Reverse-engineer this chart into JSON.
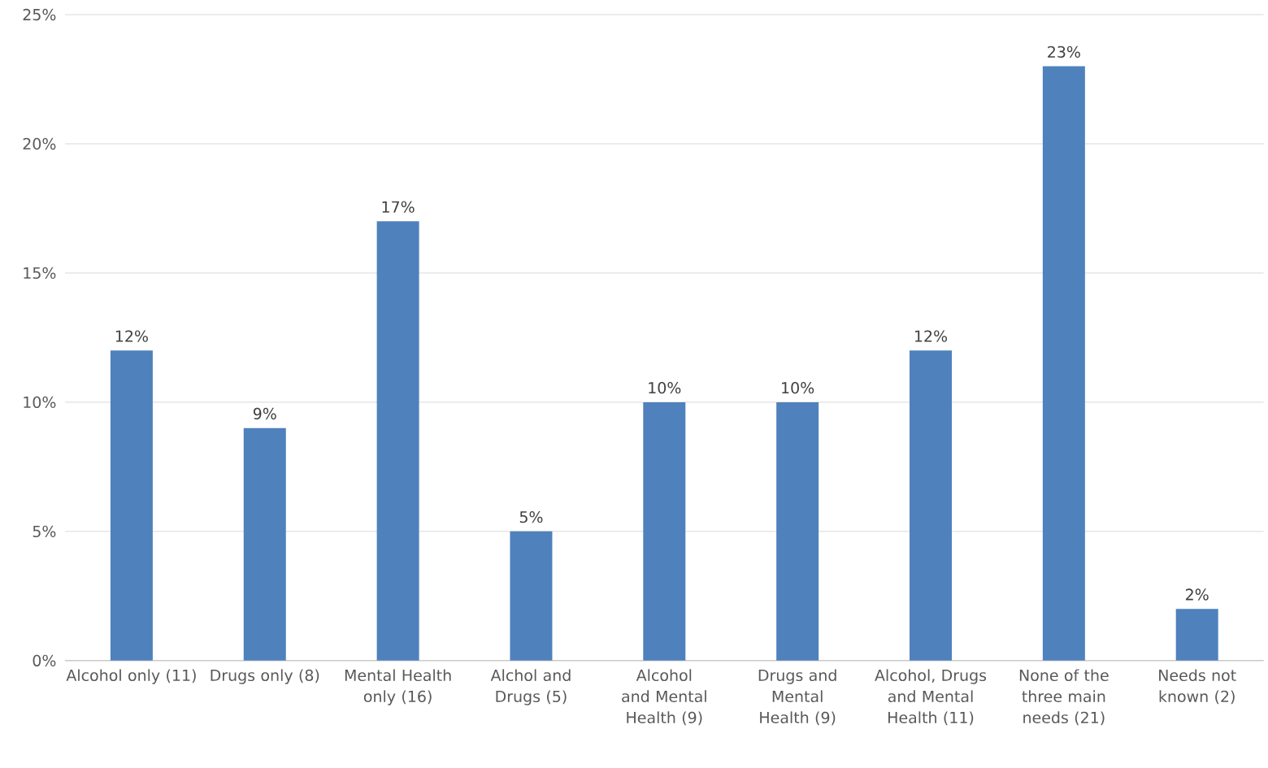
{
  "chart_data": {
    "type": "bar",
    "categories": [
      "Alcohol only (11)",
      "Drugs only (8)",
      "Mental Health only (16)",
      "Alchol and Drugs (5)",
      "Alcohol and Mental Health (9)",
      "Drugs and Mental Health (9)",
      "Alcohol, Drugs and Mental Health (11)",
      "None of the three main needs (21)",
      "Needs not known (2)"
    ],
    "values": [
      12,
      9,
      17,
      5,
      10,
      10,
      12,
      23,
      2
    ],
    "value_labels": [
      "12%",
      "9%",
      "17%",
      "5%",
      "10%",
      "10%",
      "12%",
      "23%",
      "2%"
    ],
    "color": "#4f81bd",
    "ylim": [
      0,
      25
    ],
    "yticks": [
      {
        "value": 0,
        "label": "0%"
      },
      {
        "value": 5,
        "label": "5%"
      },
      {
        "value": 10,
        "label": "10%"
      },
      {
        "value": 15,
        "label": "15%"
      },
      {
        "value": 20,
        "label": "20%"
      },
      {
        "value": 25,
        "label": "25%"
      }
    ],
    "grid": "y"
  }
}
